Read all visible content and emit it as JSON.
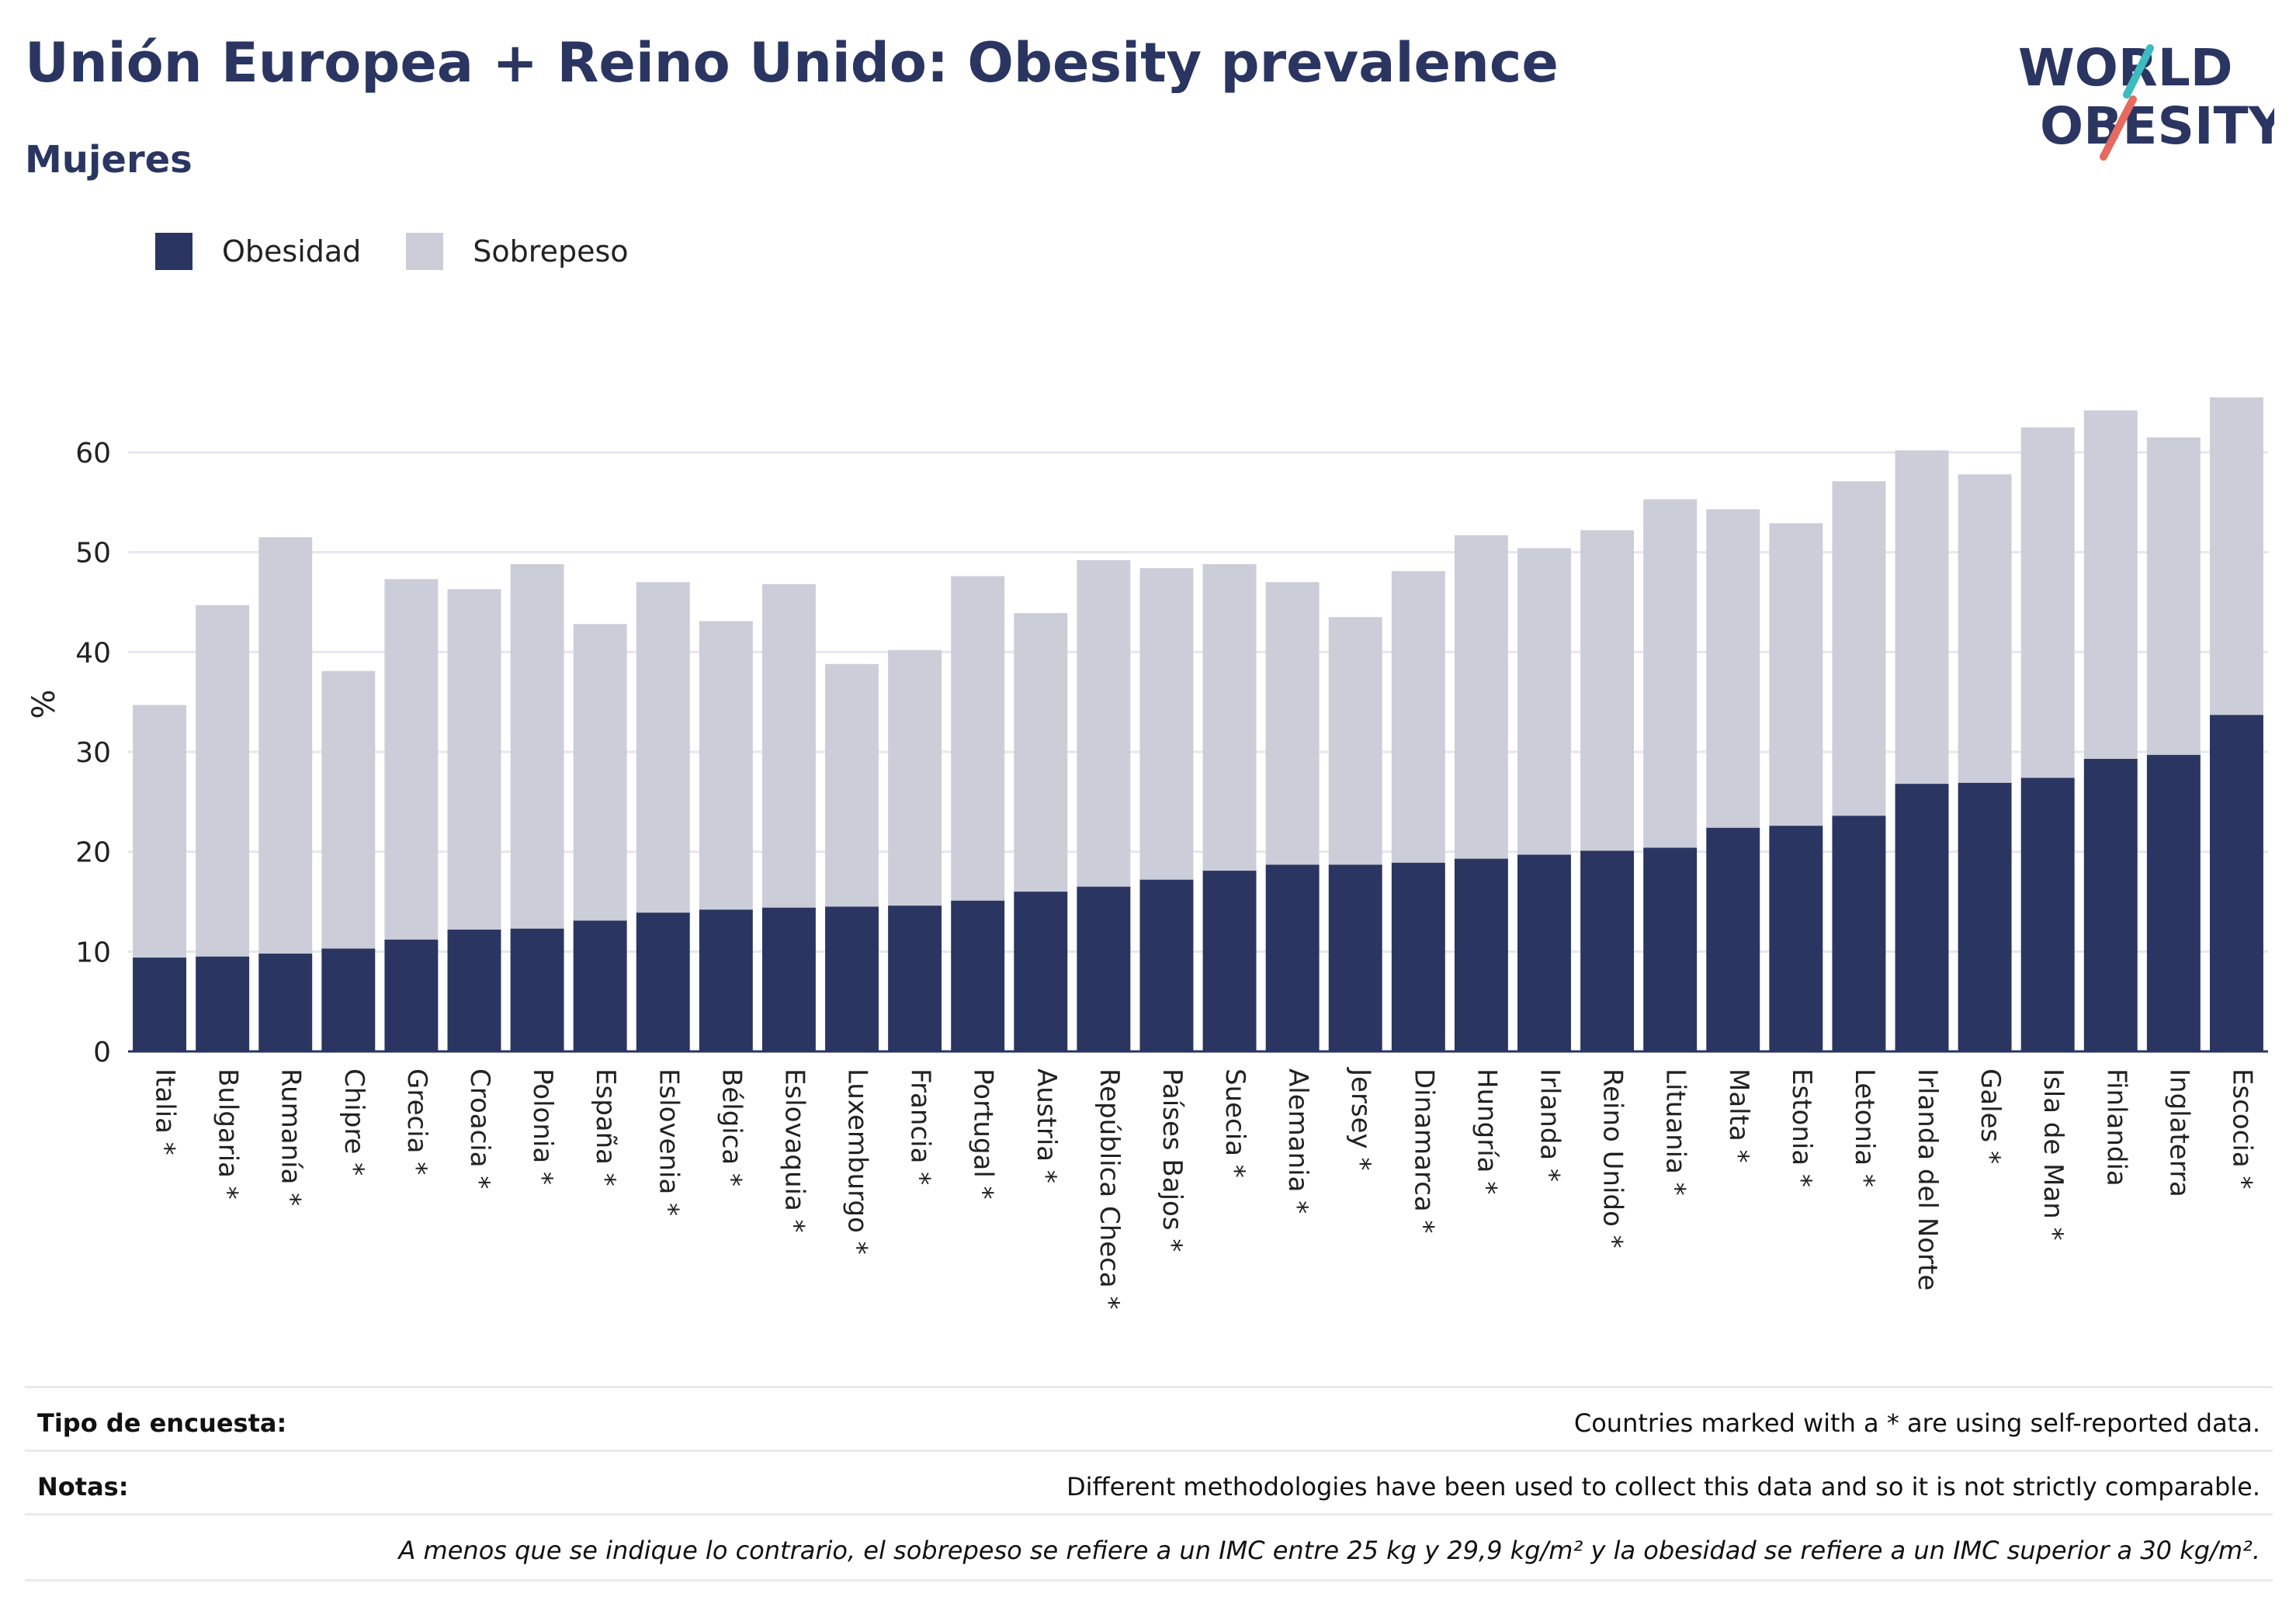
{
  "header": {
    "title": "Unión Europea + Reino Unido: Obesity prevalence",
    "subtitle": "Mujeres"
  },
  "logo": {
    "line1": "WORLD",
    "line2": "OBESITY"
  },
  "legend": [
    {
      "name": "Obesidad",
      "color": "#2a3561"
    },
    {
      "name": "Sobrepeso",
      "color": "#cbcdd9"
    }
  ],
  "chart_data": {
    "type": "bar",
    "stacked": true,
    "ylabel": "%",
    "ylim": [
      0,
      68
    ],
    "yticks": [
      0,
      10,
      20,
      30,
      40,
      50,
      60
    ],
    "grid": true,
    "legend_position": "top-left",
    "categories": [
      "Italia *",
      "Bulgaria *",
      "Rumanía *",
      "Chipre *",
      "Grecia *",
      "Croacia *",
      "Polonia *",
      "España *",
      "Eslovenia *",
      "Bélgica *",
      "Eslovaquia *",
      "Luxemburgo *",
      "Francia *",
      "Portugal *",
      "Austria *",
      "República Checa *",
      "Países Bajos *",
      "Suecia *",
      "Alemania *",
      "Jersey *",
      "Dinamarca *",
      "Hungría *",
      "Irlanda *",
      "Reino Unido *",
      "Lituania *",
      "Malta *",
      "Estonia *",
      "Letonia *",
      "Irlanda del Norte",
      "Gales *",
      "Isla de Man *",
      "Finlandia",
      "Inglaterra",
      "Escocia *"
    ],
    "series": [
      {
        "name": "Obesidad",
        "color": "#2a3561",
        "values": [
          9.4,
          9.5,
          9.8,
          10.3,
          11.2,
          12.2,
          12.3,
          13.1,
          13.9,
          14.2,
          14.4,
          14.5,
          14.6,
          15.1,
          16.0,
          16.5,
          17.2,
          18.1,
          18.7,
          18.7,
          18.9,
          19.3,
          19.7,
          20.1,
          20.4,
          22.4,
          22.6,
          23.6,
          26.8,
          26.9,
          27.4,
          29.3,
          29.7,
          33.7
        ]
      },
      {
        "name": "Sobrepeso",
        "color": "#cbcdd9",
        "values": [
          25.3,
          35.2,
          41.7,
          27.8,
          36.1,
          34.1,
          36.5,
          29.7,
          33.1,
          28.9,
          32.4,
          24.3,
          25.6,
          32.5,
          27.9,
          32.7,
          31.2,
          30.7,
          28.3,
          24.8,
          29.2,
          32.4,
          30.7,
          32.1,
          34.9,
          31.9,
          30.3,
          33.5,
          33.4,
          30.9,
          35.1,
          34.9,
          31.8,
          31.8
        ]
      }
    ]
  },
  "footer": {
    "survey_label": "Tipo de encuesta:",
    "survey_value": "Countries marked with a * are using self-reported data.",
    "notes_label": "Notas:",
    "notes_value": "Different methodologies have been used to collect this data and so it is not strictly comparable.",
    "definition": "A menos que se indique lo contrario, el sobrepeso se refiere a un IMC entre 25 kg y 29,9 kg/m² y la obesidad se refiere a un IMC superior a 30 kg/m²."
  }
}
